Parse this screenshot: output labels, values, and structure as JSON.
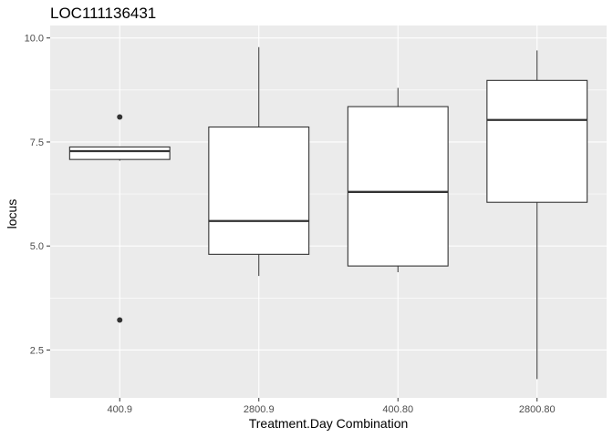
{
  "chart_data": {
    "type": "boxplot",
    "title": "LOC111136431",
    "xlabel": "Treatment.Day Combination",
    "ylabel": "locus",
    "ylim": [
      1.35,
      10.3
    ],
    "yticks": [
      2.5,
      5.0,
      7.5,
      10.0
    ],
    "ytick_labels": [
      "2.5",
      "5.0",
      "7.5",
      "10.0"
    ],
    "grid": true,
    "legend": "none",
    "categories": [
      "400.9",
      "2800.9",
      "400.80",
      "2800.80"
    ],
    "boxes": [
      {
        "category": "400.9",
        "whisker_low": 7.05,
        "q1": 7.08,
        "median": 7.28,
        "q3": 7.38,
        "whisker_high": 7.38,
        "outliers": [
          8.1,
          3.22
        ]
      },
      {
        "category": "2800.9",
        "whisker_low": 4.28,
        "q1": 4.8,
        "median": 5.6,
        "q3": 7.86,
        "whisker_high": 9.78,
        "outliers": []
      },
      {
        "category": "400.80",
        "whisker_low": 4.37,
        "q1": 4.52,
        "median": 6.3,
        "q3": 8.35,
        "whisker_high": 8.8,
        "outliers": []
      },
      {
        "category": "2800.80",
        "whisker_low": 1.8,
        "q1": 6.05,
        "median": 8.03,
        "q3": 8.98,
        "whisker_high": 9.7,
        "outliers": []
      }
    ],
    "colors": {
      "panel_background": "#ebebeb",
      "grid_major": "#ffffff",
      "box_fill": "#ffffff",
      "box_stroke": "#333333",
      "outlier": "#333333",
      "tick": "#333333"
    }
  }
}
